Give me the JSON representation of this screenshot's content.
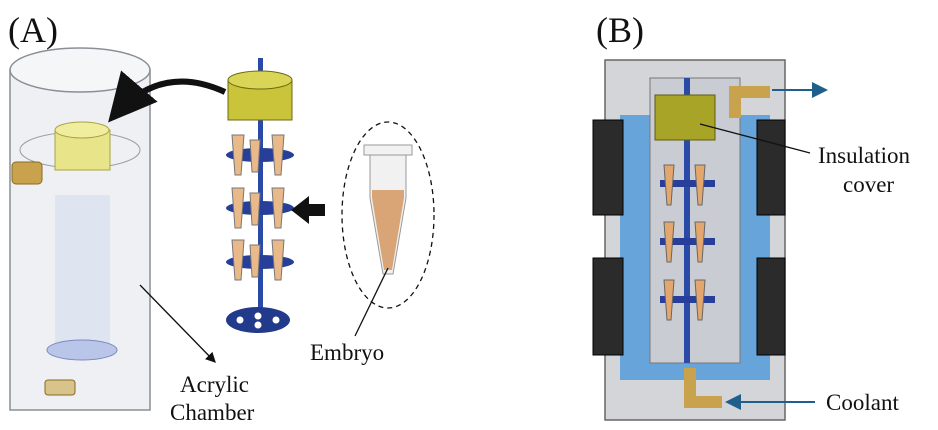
{
  "panels": [
    {
      "label": "(A)",
      "callouts": [
        {
          "lines": [
            "Acrylic",
            "Chamber"
          ]
        },
        {
          "lines": [
            "Embryo"
          ]
        }
      ]
    },
    {
      "label": "(B)",
      "callouts": [
        {
          "lines": [
            "Insulation",
            "cover"
          ]
        },
        {
          "lines": [
            "Coolant"
          ]
        }
      ]
    }
  ]
}
